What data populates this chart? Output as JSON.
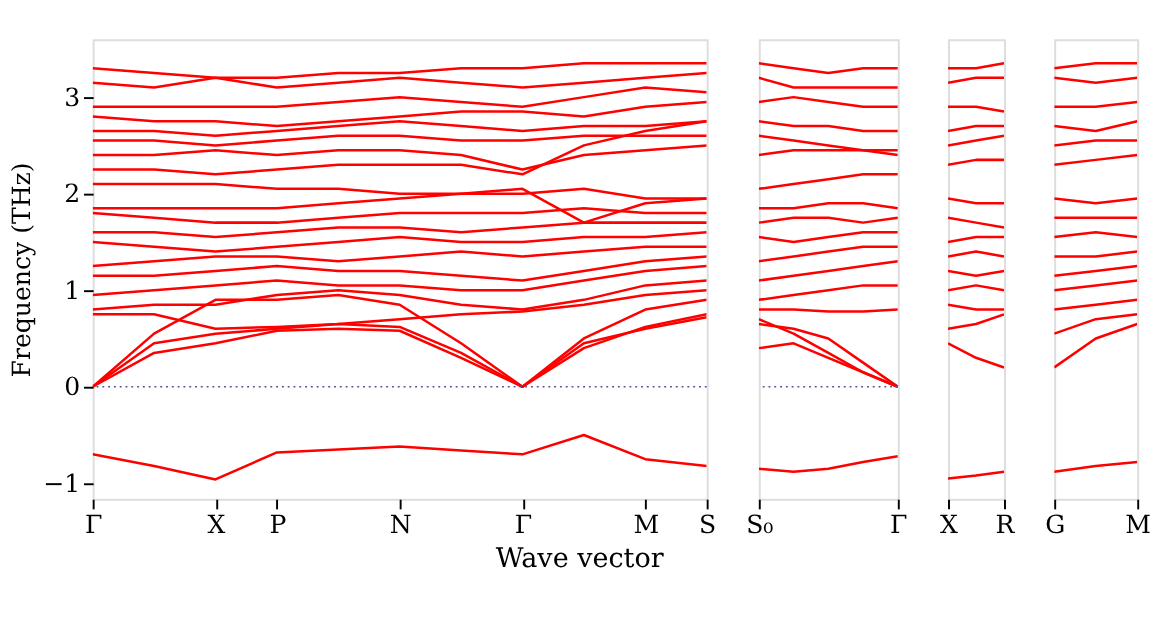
{
  "chart_data": [
    {
      "type": "line",
      "ylabel": "Frequency (THz)",
      "xlabel": "Wave vector",
      "grid": false,
      "legend": false,
      "line_style": "solid",
      "marker": "none",
      "categories": [
        "Γ",
        null,
        "X",
        "P",
        null,
        "N",
        null,
        "Γ",
        null,
        "M",
        "S"
      ],
      "ylim": [
        -1.16,
        3.6
      ],
      "yticks": [
        -1,
        0,
        1,
        2,
        3
      ],
      "ref_lines": [
        {
          "axis": "y",
          "value": 0,
          "color": "#555599",
          "line_style": "dotted"
        }
      ],
      "series": [
        {
          "color": "#ff0000",
          "values": [
            -0.7,
            -0.82,
            -0.96,
            -0.68,
            -0.65,
            -0.62,
            -0.66,
            -0.7,
            -0.5,
            -0.75,
            -0.82
          ]
        },
        {
          "color": "#ff0000",
          "values": [
            0,
            0.45,
            0.55,
            0.6,
            0.65,
            0.62,
            0.35,
            0,
            0.45,
            0.6,
            0.72
          ]
        },
        {
          "color": "#ff0000",
          "values": [
            0,
            0.35,
            0.45,
            0.58,
            0.6,
            0.58,
            0.3,
            0,
            0.4,
            0.62,
            0.75
          ]
        },
        {
          "color": "#ff0000",
          "values": [
            0,
            0.55,
            0.9,
            0.9,
            0.95,
            0.85,
            0.45,
            0,
            0.5,
            0.8,
            0.9
          ]
        },
        {
          "color": "#ff0000",
          "values": [
            0.75,
            0.75,
            0.6,
            0.62,
            0.65,
            0.7,
            0.75,
            0.78,
            0.85,
            0.95,
            1.0
          ]
        },
        {
          "color": "#ff0000",
          "values": [
            0.8,
            0.85,
            0.85,
            0.95,
            1.0,
            0.95,
            0.85,
            0.8,
            0.9,
            1.05,
            1.1
          ]
        },
        {
          "color": "#ff0000",
          "values": [
            0.95,
            1.0,
            1.05,
            1.1,
            1.05,
            1.05,
            1.0,
            1.0,
            1.1,
            1.2,
            1.25
          ]
        },
        {
          "color": "#ff0000",
          "values": [
            1.15,
            1.15,
            1.2,
            1.25,
            1.2,
            1.2,
            1.15,
            1.1,
            1.2,
            1.3,
            1.35
          ]
        },
        {
          "color": "#ff0000",
          "values": [
            1.25,
            1.3,
            1.35,
            1.35,
            1.3,
            1.35,
            1.4,
            1.35,
            1.4,
            1.45,
            1.45
          ]
        },
        {
          "color": "#ff0000",
          "values": [
            1.5,
            1.45,
            1.4,
            1.45,
            1.5,
            1.55,
            1.5,
            1.5,
            1.55,
            1.55,
            1.6
          ]
        },
        {
          "color": "#ff0000",
          "values": [
            1.6,
            1.6,
            1.55,
            1.6,
            1.65,
            1.65,
            1.6,
            1.65,
            1.7,
            1.7,
            1.7
          ]
        },
        {
          "color": "#ff0000",
          "values": [
            1.8,
            1.75,
            1.7,
            1.7,
            1.75,
            1.8,
            1.8,
            1.8,
            1.85,
            1.8,
            1.8
          ]
        },
        {
          "color": "#ff0000",
          "values": [
            1.85,
            1.85,
            1.85,
            1.85,
            1.9,
            1.95,
            2.0,
            2.05,
            1.7,
            1.9,
            1.95
          ]
        },
        {
          "color": "#ff0000",
          "values": [
            2.1,
            2.1,
            2.1,
            2.05,
            2.05,
            2.0,
            2.0,
            2.0,
            2.05,
            1.95,
            1.95
          ]
        },
        {
          "color": "#ff0000",
          "values": [
            2.25,
            2.25,
            2.2,
            2.25,
            2.3,
            2.3,
            2.3,
            2.2,
            2.5,
            2.65,
            2.75
          ]
        },
        {
          "color": "#ff0000",
          "values": [
            2.4,
            2.4,
            2.45,
            2.4,
            2.45,
            2.45,
            2.4,
            2.25,
            2.4,
            2.45,
            2.5
          ]
        },
        {
          "color": "#ff0000",
          "values": [
            2.55,
            2.55,
            2.5,
            2.55,
            2.6,
            2.6,
            2.55,
            2.55,
            2.6,
            2.6,
            2.6
          ]
        },
        {
          "color": "#ff0000",
          "values": [
            2.65,
            2.65,
            2.6,
            2.65,
            2.7,
            2.75,
            2.7,
            2.65,
            2.7,
            2.7,
            2.75
          ]
        },
        {
          "color": "#ff0000",
          "values": [
            2.8,
            2.75,
            2.75,
            2.7,
            2.75,
            2.8,
            2.85,
            2.85,
            2.8,
            2.9,
            2.95
          ]
        },
        {
          "color": "#ff0000",
          "values": [
            2.9,
            2.9,
            2.9,
            2.9,
            2.95,
            3.0,
            2.95,
            2.9,
            3.0,
            3.1,
            3.05
          ]
        },
        {
          "color": "#ff0000",
          "values": [
            3.15,
            3.1,
            3.2,
            3.1,
            3.15,
            3.2,
            3.15,
            3.1,
            3.15,
            3.2,
            3.25
          ]
        },
        {
          "color": "#ff0000",
          "values": [
            3.3,
            3.25,
            3.2,
            3.2,
            3.25,
            3.25,
            3.3,
            3.3,
            3.35,
            3.35,
            3.35
          ]
        }
      ]
    },
    {
      "type": "line",
      "grid": false,
      "legend": false,
      "line_style": "solid",
      "marker": "none",
      "tick_labels": "x",
      "categories": [
        "S₀",
        null,
        null,
        null,
        "Γ"
      ],
      "ylim": [
        -1.16,
        3.6
      ],
      "ref_lines": [
        {
          "axis": "y",
          "value": 0,
          "color": "#555599",
          "line_style": "dotted"
        }
      ],
      "series": [
        {
          "color": "#ff0000",
          "values": [
            -0.85,
            -0.88,
            -0.85,
            -0.78,
            -0.72
          ]
        },
        {
          "color": "#ff0000",
          "values": [
            0.4,
            0.45,
            0.3,
            0.15,
            0
          ]
        },
        {
          "color": "#ff0000",
          "values": [
            0.7,
            0.55,
            0.35,
            0.15,
            0
          ]
        },
        {
          "color": "#ff0000",
          "values": [
            0.65,
            0.6,
            0.5,
            0.25,
            0
          ]
        },
        {
          "color": "#ff0000",
          "values": [
            0.8,
            0.8,
            0.78,
            0.78,
            0.8
          ]
        },
        {
          "color": "#ff0000",
          "values": [
            0.9,
            0.95,
            1.0,
            1.05,
            1.05
          ]
        },
        {
          "color": "#ff0000",
          "values": [
            1.1,
            1.15,
            1.2,
            1.25,
            1.3
          ]
        },
        {
          "color": "#ff0000",
          "values": [
            1.3,
            1.35,
            1.4,
            1.45,
            1.45
          ]
        },
        {
          "color": "#ff0000",
          "values": [
            1.55,
            1.5,
            1.55,
            1.6,
            1.6
          ]
        },
        {
          "color": "#ff0000",
          "values": [
            1.7,
            1.75,
            1.75,
            1.7,
            1.75
          ]
        },
        {
          "color": "#ff0000",
          "values": [
            1.85,
            1.85,
            1.9,
            1.9,
            1.85
          ]
        },
        {
          "color": "#ff0000",
          "values": [
            2.05,
            2.1,
            2.15,
            2.2,
            2.2
          ]
        },
        {
          "color": "#ff0000",
          "values": [
            2.4,
            2.45,
            2.45,
            2.45,
            2.4
          ]
        },
        {
          "color": "#ff0000",
          "values": [
            2.6,
            2.55,
            2.5,
            2.45,
            2.45
          ]
        },
        {
          "color": "#ff0000",
          "values": [
            2.75,
            2.7,
            2.7,
            2.65,
            2.65
          ]
        },
        {
          "color": "#ff0000",
          "values": [
            2.95,
            3.0,
            2.95,
            2.9,
            2.9
          ]
        },
        {
          "color": "#ff0000",
          "values": [
            3.2,
            3.1,
            3.1,
            3.1,
            3.1
          ]
        },
        {
          "color": "#ff0000",
          "values": [
            3.35,
            3.3,
            3.25,
            3.3,
            3.3
          ]
        }
      ]
    },
    {
      "type": "line",
      "grid": false,
      "legend": false,
      "line_style": "solid",
      "marker": "none",
      "tick_labels": "x",
      "categories": [
        "X",
        null,
        "R"
      ],
      "ylim": [
        -1.16,
        3.6
      ],
      "series": [
        {
          "color": "#ff0000",
          "values": [
            -0.95,
            -0.92,
            -0.88
          ]
        },
        {
          "color": "#ff0000",
          "values": [
            0.45,
            0.3,
            0.2
          ]
        },
        {
          "color": "#ff0000",
          "values": [
            0.6,
            0.65,
            0.75
          ]
        },
        {
          "color": "#ff0000",
          "values": [
            0.85,
            0.8,
            0.8
          ]
        },
        {
          "color": "#ff0000",
          "values": [
            1.0,
            1.05,
            1.0
          ]
        },
        {
          "color": "#ff0000",
          "values": [
            1.2,
            1.15,
            1.2
          ]
        },
        {
          "color": "#ff0000",
          "values": [
            1.35,
            1.4,
            1.35
          ]
        },
        {
          "color": "#ff0000",
          "values": [
            1.5,
            1.55,
            1.55
          ]
        },
        {
          "color": "#ff0000",
          "values": [
            1.75,
            1.7,
            1.65
          ]
        },
        {
          "color": "#ff0000",
          "values": [
            1.95,
            1.9,
            1.9
          ]
        },
        {
          "color": "#ff0000",
          "values": [
            2.3,
            2.35,
            2.35
          ]
        },
        {
          "color": "#ff0000",
          "values": [
            2.5,
            2.55,
            2.6
          ]
        },
        {
          "color": "#ff0000",
          "values": [
            2.65,
            2.7,
            2.7
          ]
        },
        {
          "color": "#ff0000",
          "values": [
            2.9,
            2.9,
            2.85
          ]
        },
        {
          "color": "#ff0000",
          "values": [
            3.15,
            3.2,
            3.2
          ]
        },
        {
          "color": "#ff0000",
          "values": [
            3.3,
            3.3,
            3.35
          ]
        }
      ]
    },
    {
      "type": "line",
      "grid": false,
      "legend": false,
      "line_style": "solid",
      "marker": "none",
      "tick_labels": "x",
      "categories": [
        "G",
        null,
        "M"
      ],
      "ylim": [
        -1.16,
        3.6
      ],
      "series": [
        {
          "color": "#ff0000",
          "values": [
            -0.88,
            -0.82,
            -0.78
          ]
        },
        {
          "color": "#ff0000",
          "values": [
            0.2,
            0.5,
            0.65
          ]
        },
        {
          "color": "#ff0000",
          "values": [
            0.55,
            0.7,
            0.75
          ]
        },
        {
          "color": "#ff0000",
          "values": [
            0.8,
            0.85,
            0.9
          ]
        },
        {
          "color": "#ff0000",
          "values": [
            1.0,
            1.05,
            1.1
          ]
        },
        {
          "color": "#ff0000",
          "values": [
            1.15,
            1.2,
            1.25
          ]
        },
        {
          "color": "#ff0000",
          "values": [
            1.35,
            1.35,
            1.4
          ]
        },
        {
          "color": "#ff0000",
          "values": [
            1.55,
            1.6,
            1.55
          ]
        },
        {
          "color": "#ff0000",
          "values": [
            1.75,
            1.75,
            1.75
          ]
        },
        {
          "color": "#ff0000",
          "values": [
            1.95,
            1.9,
            1.95
          ]
        },
        {
          "color": "#ff0000",
          "values": [
            2.3,
            2.35,
            2.4
          ]
        },
        {
          "color": "#ff0000",
          "values": [
            2.5,
            2.55,
            2.55
          ]
        },
        {
          "color": "#ff0000",
          "values": [
            2.7,
            2.65,
            2.75
          ]
        },
        {
          "color": "#ff0000",
          "values": [
            2.9,
            2.9,
            2.95
          ]
        },
        {
          "color": "#ff0000",
          "values": [
            3.2,
            3.15,
            3.2
          ]
        },
        {
          "color": "#ff0000",
          "values": [
            3.3,
            3.35,
            3.35
          ]
        }
      ]
    }
  ]
}
